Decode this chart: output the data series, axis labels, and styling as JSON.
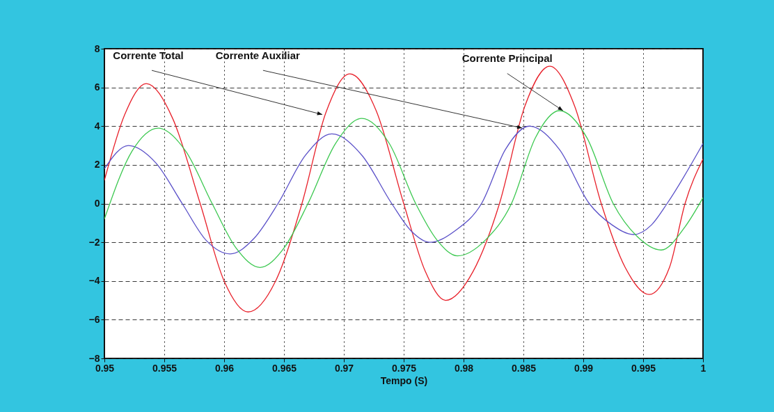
{
  "chart_data": {
    "type": "line",
    "xlabel": "Tempo (S)",
    "xlim": [
      0.95,
      1
    ],
    "xticks": [
      0.95,
      0.955,
      0.96,
      0.965,
      0.97,
      0.975,
      0.98,
      0.985,
      0.99,
      0.995,
      1
    ],
    "ylim": [
      -8,
      8
    ],
    "yticks": [
      -8,
      -6,
      -4,
      -2,
      0,
      2,
      4,
      6,
      8
    ],
    "grid": true,
    "line_style": "solid",
    "series": [
      {
        "color": "#e8202a",
        "x": [
          0.95,
          0.9517,
          0.9535,
          0.9557,
          0.958,
          0.96,
          0.962,
          0.9643,
          0.9665,
          0.9685,
          0.9705,
          0.9727,
          0.975,
          0.9768,
          0.9785,
          0.9808,
          0.983,
          0.9851,
          0.9872,
          0.9893,
          0.9915,
          0.9935,
          0.9955,
          0.9972,
          0.9985,
          1.0
        ],
        "values": [
          1.2,
          4.6,
          6.2,
          4.4,
          0,
          -4.0,
          -5.6,
          -4.0,
          0,
          4.7,
          6.7,
          4.8,
          0,
          -3.5,
          -5.0,
          -3.5,
          0,
          5.0,
          7.1,
          5.0,
          0,
          -3.3,
          -4.7,
          -3.3,
          0,
          2.3
        ]
      },
      {
        "color": "#5a50c8",
        "x": [
          0.95,
          0.952,
          0.9543,
          0.9565,
          0.9585,
          0.9605,
          0.9625,
          0.9645,
          0.9668,
          0.969,
          0.9715,
          0.974,
          0.9756,
          0.9772,
          0.9793,
          0.9815,
          0.9835,
          0.9855,
          0.988,
          0.9905,
          0.9924,
          0.9942,
          0.9957,
          0.997,
          1.0
        ],
        "values": [
          1.8,
          3.0,
          2.1,
          0,
          -1.9,
          -2.6,
          -1.8,
          0,
          2.5,
          3.6,
          2.5,
          0,
          -1.4,
          -2.0,
          -1.4,
          0,
          2.8,
          4.0,
          2.8,
          0,
          -1.1,
          -1.6,
          -1.1,
          0,
          3.1
        ]
      },
      {
        "color": "#3cc850",
        "x": [
          0.95,
          0.9523,
          0.9545,
          0.9568,
          0.959,
          0.961,
          0.963,
          0.965,
          0.967,
          0.9693,
          0.9715,
          0.9738,
          0.976,
          0.9778,
          0.9795,
          0.9818,
          0.984,
          0.986,
          0.988,
          0.9903,
          0.9925,
          0.9945,
          0.9965,
          0.9985,
          1.0
        ],
        "values": [
          -0.8,
          2.7,
          3.9,
          2.7,
          0,
          -2.3,
          -3.3,
          -2.3,
          0,
          3.1,
          4.4,
          3.1,
          0,
          -1.9,
          -2.7,
          -1.9,
          0,
          3.4,
          4.8,
          3.4,
          0,
          -1.7,
          -2.4,
          -1.2,
          0.3
        ]
      }
    ],
    "annotations": [
      {
        "text": "Corrente Total",
        "x": 0.9682,
        "y": 4.6
      },
      {
        "text": "Corrente Auxiliar",
        "x": 0.9849,
        "y": 3.9
      },
      {
        "text": "Corrente Principal",
        "x": 0.9883,
        "y": 4.8
      }
    ]
  }
}
